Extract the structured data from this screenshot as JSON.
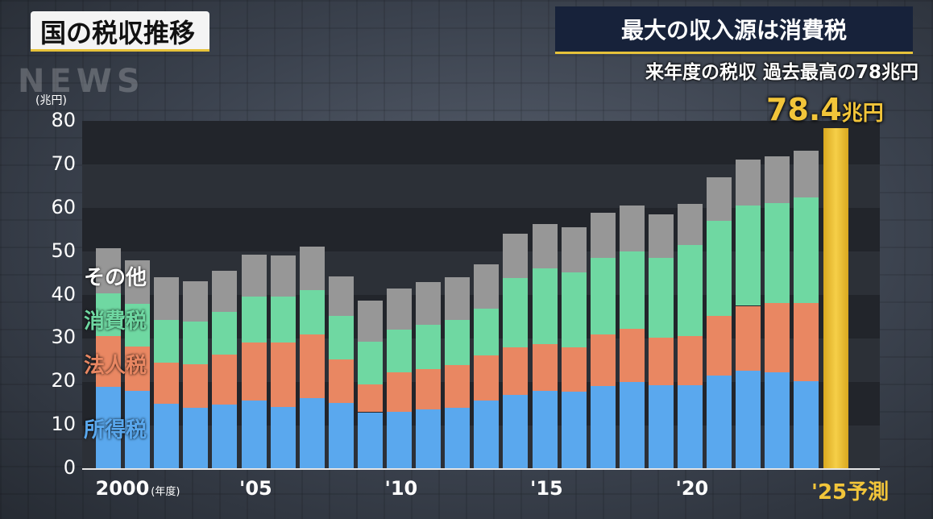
{
  "header": {
    "title": "国の税収推移",
    "headline": "最大の収入源は消費税",
    "subheadline": "来年度の税収 過去最高の78兆円",
    "watermark": "NEWS"
  },
  "colors": {
    "income_tax": "#5aa8ee",
    "corporate_tax": "#e98762",
    "consumption_tax": "#6fd8a2",
    "other": "#979797",
    "forecast": "#f2c53a"
  },
  "chart_data": {
    "type": "bar",
    "stacked": true,
    "unit_label": "(兆円)",
    "ylim": [
      0,
      80
    ],
    "y_ticks": [
      "0",
      "10",
      "20",
      "30",
      "40",
      "50",
      "60",
      "70",
      "80"
    ],
    "x_tick_labels": [
      {
        "index": 0,
        "text": "2000",
        "suffix": "(年度)"
      },
      {
        "index": 5,
        "text": "'05",
        "suffix": ""
      },
      {
        "index": 10,
        "text": "'10",
        "suffix": ""
      },
      {
        "index": 15,
        "text": "'15",
        "suffix": ""
      },
      {
        "index": 20,
        "text": "'20",
        "suffix": ""
      }
    ],
    "last_label": "'25予測",
    "categories": [
      "2000",
      "2001",
      "2002",
      "2003",
      "2004",
      "2005",
      "2006",
      "2007",
      "2008",
      "2009",
      "2010",
      "2011",
      "2012",
      "2013",
      "2014",
      "2015",
      "2016",
      "2017",
      "2018",
      "2019",
      "2020",
      "2021",
      "2022",
      "2023",
      "2024"
    ],
    "series": [
      {
        "name": "所得税",
        "key": "income_tax",
        "values": [
          18.8,
          17.8,
          14.8,
          13.9,
          14.7,
          15.6,
          14.1,
          16.1,
          15.0,
          12.9,
          13.0,
          13.5,
          14.0,
          15.5,
          16.8,
          17.8,
          17.6,
          18.9,
          19.9,
          19.2,
          19.2,
          21.4,
          22.5,
          22.1,
          20.0
        ]
      },
      {
        "name": "法人税",
        "key": "corporate_tax",
        "values": [
          11.7,
          10.3,
          9.5,
          10.1,
          11.4,
          13.3,
          14.9,
          14.7,
          10.0,
          6.4,
          9.0,
          9.4,
          9.8,
          10.5,
          11.0,
          10.8,
          10.3,
          12.0,
          12.3,
          10.8,
          11.2,
          13.6,
          14.9,
          15.9,
          18.0
        ]
      },
      {
        "name": "消費税",
        "key": "consumption_tax",
        "values": [
          9.8,
          9.8,
          9.8,
          9.7,
          9.9,
          10.6,
          10.5,
          10.3,
          10.0,
          9.8,
          10.0,
          10.2,
          10.4,
          10.8,
          16.0,
          17.4,
          17.2,
          17.5,
          17.7,
          18.4,
          21.0,
          21.9,
          23.1,
          23.1,
          24.3
        ]
      },
      {
        "name": "その他",
        "key": "other",
        "values": [
          10.4,
          9.9,
          9.9,
          9.4,
          9.4,
          9.6,
          9.5,
          9.9,
          9.2,
          9.5,
          9.3,
          9.8,
          9.7,
          10.2,
          10.2,
          10.3,
          10.4,
          10.4,
          10.6,
          10.0,
          9.5,
          10.1,
          10.5,
          10.8,
          10.9
        ]
      }
    ],
    "forecast": {
      "label": "'25予測",
      "value": 78.4,
      "value_text": "78.4",
      "unit": "兆円"
    },
    "legend": [
      {
        "key": "other",
        "label": "その他"
      },
      {
        "key": "consumption_tax",
        "label": "消費税"
      },
      {
        "key": "corporate_tax",
        "label": "法人税"
      },
      {
        "key": "income_tax",
        "label": "所得税"
      }
    ]
  }
}
